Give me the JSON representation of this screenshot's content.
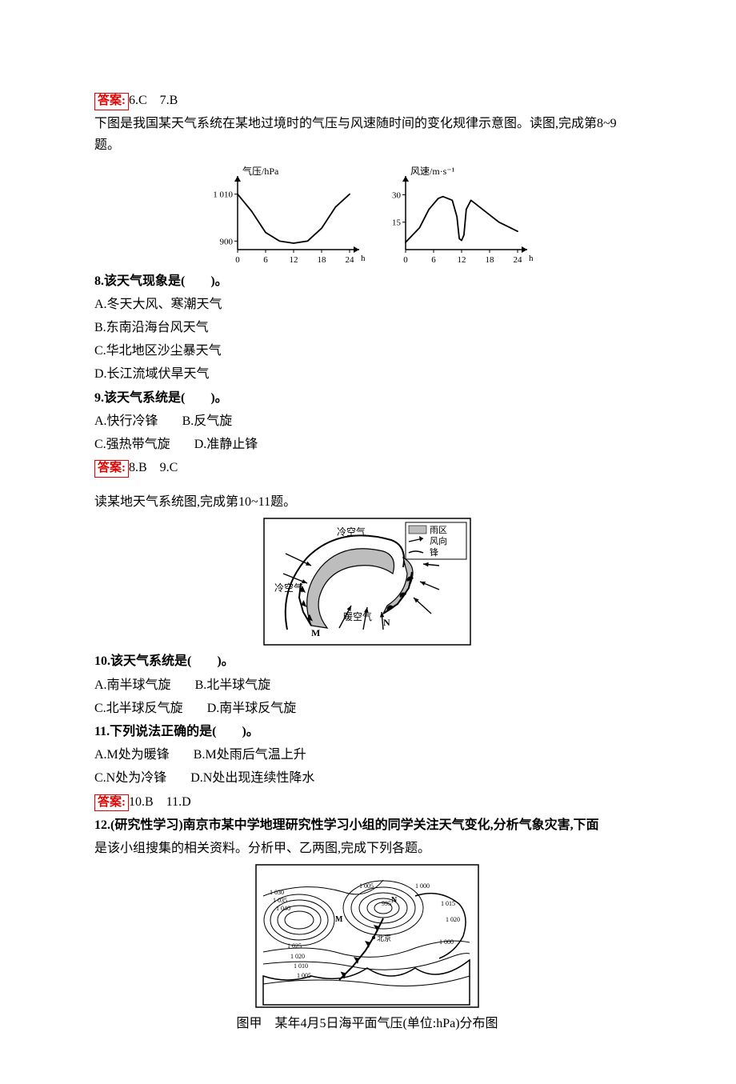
{
  "ans_6_7": {
    "label": "答案:",
    "text": "6.C　7.B"
  },
  "intro_8_9": "下图是我国某天气系统在某地过境时的气压与风速随时间的变化规律示意图。读图,完成第8~9题。",
  "chart": {
    "pressure": {
      "ylabel": "气压/hPa",
      "xmax_label": "h",
      "yticks": [
        "1 010",
        "900"
      ],
      "xticks": [
        "0",
        "6",
        "12",
        "18",
        "24"
      ],
      "ylim": [
        880,
        1030
      ],
      "xlim": [
        0,
        24
      ],
      "points": [
        [
          0,
          1010
        ],
        [
          3,
          970
        ],
        [
          6,
          920
        ],
        [
          9,
          900
        ],
        [
          12,
          895
        ],
        [
          15,
          900
        ],
        [
          18,
          930
        ],
        [
          21,
          980
        ],
        [
          24,
          1010
        ]
      ],
      "axis_color": "#000",
      "line_color": "#000",
      "line_width": 1.8
    },
    "wind": {
      "ylabel": "风速/m·s⁻¹",
      "xmax_label": "h",
      "yticks": [
        "30",
        "15"
      ],
      "xticks": [
        "0",
        "6",
        "12",
        "18",
        "24"
      ],
      "ylim": [
        0,
        35
      ],
      "xlim": [
        0,
        24
      ],
      "points": [
        [
          0,
          4
        ],
        [
          3,
          12
        ],
        [
          5,
          22
        ],
        [
          7,
          28
        ],
        [
          8,
          29
        ],
        [
          10,
          27
        ],
        [
          11,
          18
        ],
        [
          11.5,
          6
        ],
        [
          12,
          5
        ],
        [
          12.5,
          8
        ],
        [
          13,
          22
        ],
        [
          14,
          27
        ],
        [
          16,
          23
        ],
        [
          20,
          15
        ],
        [
          24,
          10
        ]
      ],
      "axis_color": "#000",
      "line_color": "#000",
      "line_width": 1.8
    }
  },
  "q8": {
    "stem": "8.该天气现象是(　　)。",
    "A": "A.冬天大风、寒潮天气",
    "B": "B.东南沿海台风天气",
    "C": "C.华北地区沙尘暴天气",
    "D": "D.长江流域伏旱天气"
  },
  "q9": {
    "stem": "9.该天气系统是(　　)。",
    "A": "A.快行冷锋",
    "B": "B.反气旋",
    "C": "C.强热带气旋",
    "D": "D.准静止锋"
  },
  "ans_8_9": {
    "label": "答案:",
    "text": "8.B　9.C"
  },
  "intro_10_11": "读某地天气系统图,完成第10~11题。",
  "cyclone": {
    "legend": {
      "rain": "雨区",
      "wind": "风向",
      "front": "锋"
    },
    "labels": {
      "cold1": "冷空气",
      "cold2": "冷空气",
      "warm": "暖空气",
      "M": "M",
      "N": "N"
    },
    "colors": {
      "stroke": "#000",
      "rain_fill": "#bdbdbd",
      "bg": "#fff"
    }
  },
  "q10": {
    "stem": "10.该天气系统是(　　)。",
    "A": "A.南半球气旋",
    "B": "B.北半球气旋",
    "C": "C.北半球反气旋",
    "D": "D.南半球反气旋"
  },
  "q11": {
    "stem": "11.下列说法正确的是(　　)。",
    "A": "A.M处为暖锋",
    "B": "B.M处雨后气温上升",
    "C": "C.N处为冷锋",
    "D": "D.N处出现连续性降水"
  },
  "ans_10_11": {
    "label": "答案:",
    "text": "10.B　11.D"
  },
  "q12": {
    "stem_a": "12.(研究性学习)南京市某中学地理研究性学习小组的同学关注天气变化,分析气象灾害,下面",
    "stem_b": "是该小组搜集的相关资料。分析甲、乙两图,完成下列各题。"
  },
  "map": {
    "caption": "图甲　某年4月5日海平面气压(单位:hPa)分布图",
    "iso_labels": [
      "1 030",
      "1 035",
      "1 040",
      "1 025",
      "1 020",
      "1 010",
      "1 005",
      "1 005",
      "995",
      "1 000",
      "1 015",
      "1 020",
      "1 000"
    ],
    "pts": [
      "M",
      "N",
      "北京"
    ],
    "colors": {
      "stroke": "#000",
      "bg": "#fff"
    }
  }
}
